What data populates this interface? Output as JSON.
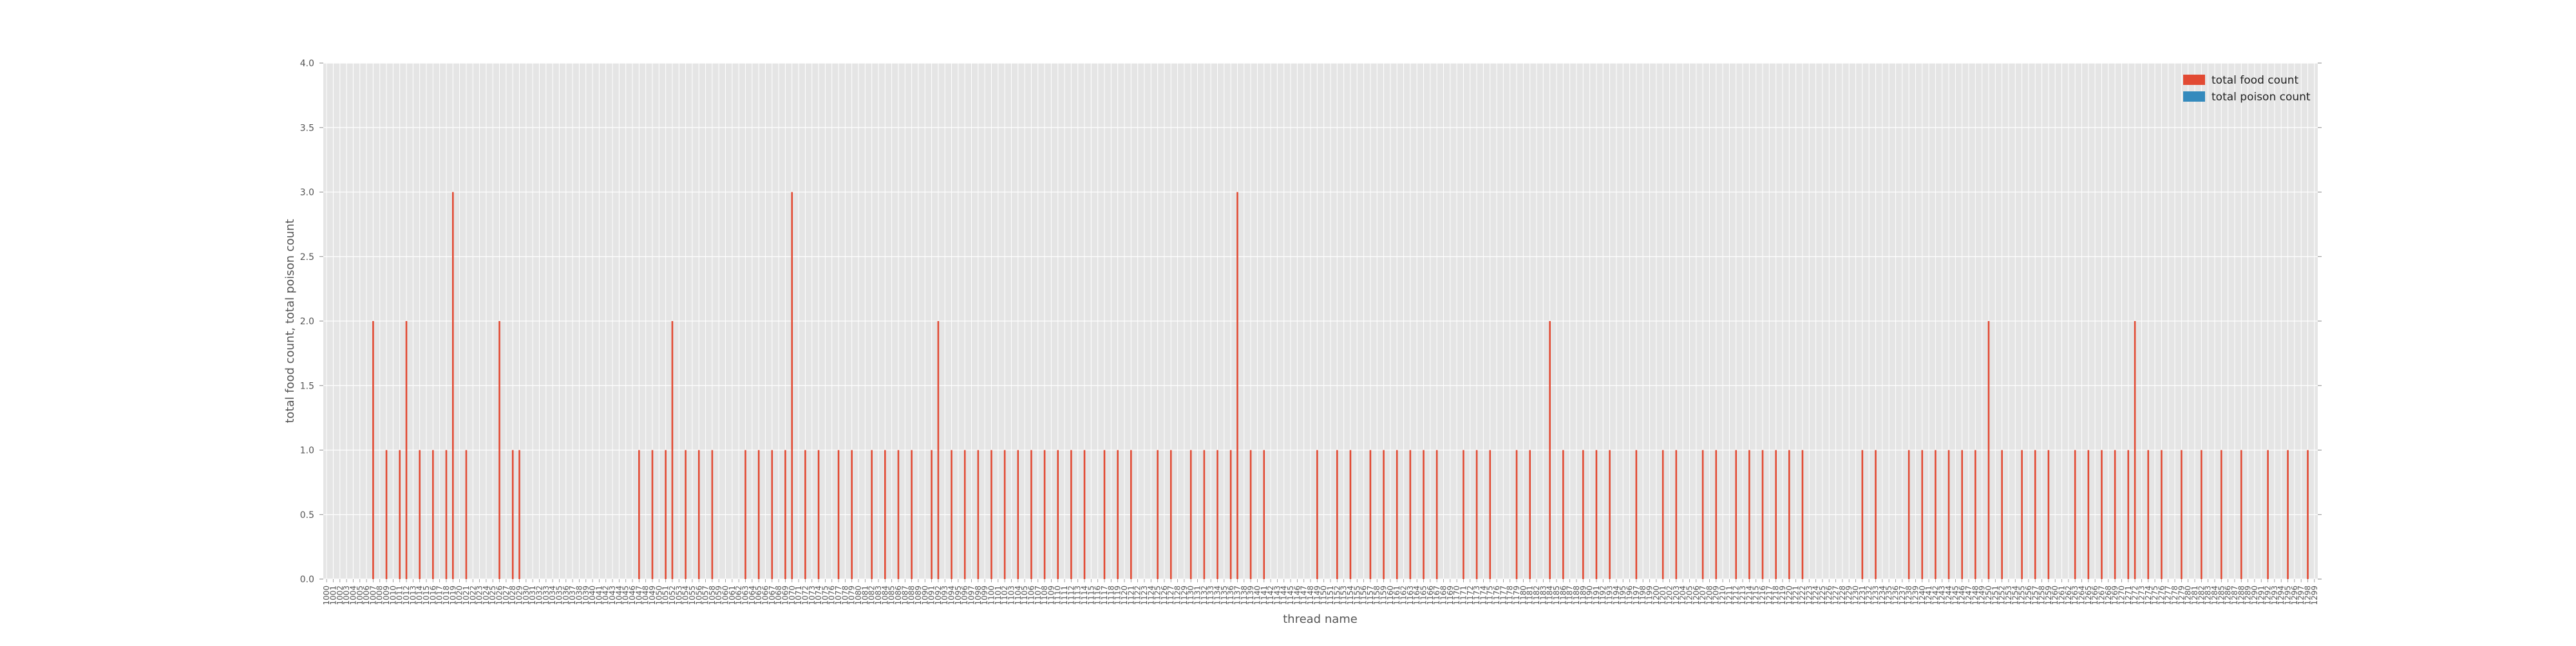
{
  "chart_data": {
    "type": "bar",
    "xlabel": "thread name",
    "ylabel": "total food count, total poison count",
    "ylim": [
      0,
      4.0
    ],
    "yticks": [
      "0.0",
      "0.5",
      "1.0",
      "1.5",
      "2.0",
      "2.5",
      "3.0",
      "3.5",
      "4.0"
    ],
    "grid": true,
    "legend_position": "top-right",
    "background_color": "#e5e5e5",
    "x_start": 1000,
    "x_end": 1299,
    "series": [
      {
        "name": "total food count",
        "color": "#e24a33",
        "values": [
          0,
          0,
          0,
          0,
          0,
          0,
          0,
          2,
          0,
          1,
          0,
          1,
          2,
          0,
          1,
          0,
          1,
          0,
          1,
          3,
          0,
          1,
          0,
          0,
          0,
          0,
          2,
          0,
          1,
          1,
          0,
          0,
          0,
          0,
          0,
          0,
          0,
          0,
          0,
          0,
          0,
          0,
          0,
          0,
          0,
          0,
          0,
          1,
          0,
          1,
          0,
          1,
          2,
          0,
          1,
          0,
          1,
          0,
          1,
          0,
          0,
          0,
          0,
          1,
          0,
          1,
          0,
          1,
          0,
          1,
          3,
          0,
          1,
          0,
          1,
          0,
          0,
          1,
          0,
          1,
          0,
          0,
          1,
          0,
          1,
          0,
          1,
          0,
          1,
          0,
          0,
          1,
          2,
          0,
          1,
          0,
          1,
          0,
          1,
          0,
          1,
          0,
          1,
          0,
          1,
          0,
          1,
          0,
          1,
          0,
          1,
          0,
          1,
          0,
          1,
          0,
          0,
          1,
          0,
          1,
          0,
          1,
          0,
          0,
          0,
          1,
          0,
          1,
          0,
          0,
          1,
          0,
          1,
          0,
          1,
          0,
          1,
          3,
          0,
          1,
          0,
          1,
          0,
          0,
          0,
          0,
          0,
          0,
          0,
          1,
          0,
          0,
          1,
          0,
          1,
          0,
          0,
          1,
          0,
          1,
          0,
          1,
          0,
          1,
          0,
          1,
          0,
          1,
          0,
          0,
          0,
          1,
          0,
          1,
          0,
          1,
          0,
          0,
          0,
          1,
          0,
          1,
          0,
          0,
          2,
          0,
          1,
          0,
          0,
          1,
          0,
          1,
          0,
          1,
          0,
          0,
          0,
          1,
          0,
          0,
          0,
          1,
          0,
          1,
          0,
          0,
          0,
          1,
          0,
          1,
          0,
          0,
          1,
          0,
          1,
          0,
          1,
          0,
          1,
          0,
          1,
          0,
          1,
          0,
          0,
          0,
          0,
          0,
          0,
          0,
          0,
          1,
          0,
          1,
          0,
          0,
          0,
          0,
          1,
          0,
          1,
          0,
          1,
          0,
          1,
          0,
          1,
          0,
          1,
          0,
          2,
          0,
          1,
          0,
          0,
          1,
          0,
          1,
          0,
          1,
          0,
          0,
          0,
          1,
          0,
          1,
          0,
          1,
          0,
          1,
          0,
          1,
          2,
          0,
          1,
          0,
          1,
          0,
          0,
          1,
          0,
          0,
          1,
          0,
          0,
          1,
          0,
          0,
          1,
          0,
          0,
          0,
          1,
          0,
          0,
          1,
          0,
          0,
          1,
          0
        ]
      },
      {
        "name": "total poison count",
        "color": "#348abd",
        "values": []
      }
    ],
    "xtick_labels": [
      "1000",
      "1001",
      "1002",
      "1003",
      "1004",
      "1005",
      "1006",
      "1007",
      "1008",
      "1009",
      "1010",
      "1011",
      "1012",
      "1013",
      "1014",
      "1015",
      "1016",
      "1017",
      "1018",
      "1019",
      "1020",
      "1021",
      "1022",
      "1023",
      "1024",
      "1025",
      "1026",
      "1027",
      "1028",
      "1029",
      "1030",
      "1031",
      "1032",
      "1033",
      "1034",
      "1035",
      "1036",
      "1037",
      "1038",
      "1039",
      "1040",
      "1041",
      "1042",
      "1043",
      "1044",
      "1045",
      "1046",
      "1047",
      "1048",
      "1049",
      "1050",
      "1051",
      "1052",
      "1053",
      "1054",
      "1055",
      "1056",
      "1057",
      "1058",
      "1059",
      "1060",
      "1061",
      "1062",
      "1063",
      "1064",
      "1065",
      "1066",
      "1067",
      "1068",
      "1069",
      "1070",
      "1071",
      "1072",
      "1073",
      "1074",
      "1075",
      "1076",
      "1077",
      "1078",
      "1079",
      "1080",
      "1081",
      "1082",
      "1083",
      "1084",
      "1085",
      "1086",
      "1087",
      "1088",
      "1089",
      "1090",
      "1091",
      "1092",
      "1093",
      "1094",
      "1095",
      "1096",
      "1097",
      "1098",
      "1099",
      "1100",
      "1101",
      "1102",
      "1103",
      "1104",
      "1105",
      "1106",
      "1107",
      "1108",
      "1109",
      "1110",
      "1111",
      "1112",
      "1113",
      "1114",
      "1115",
      "1116",
      "1117",
      "1118",
      "1119",
      "1120",
      "1121",
      "1122",
      "1123",
      "1124",
      "1125",
      "1126",
      "1127",
      "1128",
      "1129",
      "1130",
      "1131",
      "1132",
      "1133",
      "1134",
      "1135",
      "1136",
      "1137",
      "1138",
      "1139",
      "1140",
      "1141",
      "1142",
      "1143",
      "1144",
      "1145",
      "1146",
      "1147",
      "1148",
      "1149",
      "1150",
      "1151",
      "1152",
      "1153",
      "1154",
      "1155",
      "1156",
      "1157",
      "1158",
      "1159",
      "1160",
      "1161",
      "1162",
      "1163",
      "1164",
      "1165",
      "1166",
      "1167",
      "1168",
      "1169",
      "1170",
      "1171",
      "1172",
      "1173",
      "1174",
      "1175",
      "1176",
      "1177",
      "1178",
      "1179",
      "1180",
      "1181",
      "1182",
      "1183",
      "1184",
      "1185",
      "1186",
      "1187",
      "1188",
      "1189",
      "1190",
      "1191",
      "1192",
      "1193",
      "1194",
      "1195",
      "1196",
      "1197",
      "1198",
      "1199",
      "1200",
      "1201",
      "1202",
      "1203",
      "1204",
      "1205",
      "1206",
      "1207",
      "1208",
      "1209",
      "1210",
      "1211",
      "1212",
      "1213",
      "1214",
      "1215",
      "1216",
      "1217",
      "1218",
      "1219",
      "1220",
      "1221",
      "1222",
      "1223",
      "1224",
      "1225",
      "1226",
      "1227",
      "1228",
      "1229",
      "1230",
      "1231",
      "1232",
      "1233",
      "1234",
      "1235",
      "1236",
      "1237",
      "1238",
      "1239",
      "1240",
      "1241",
      "1242",
      "1243",
      "1244",
      "1245",
      "1246",
      "1247",
      "1248",
      "1249",
      "1250",
      "1251",
      "1252",
      "1253",
      "1254",
      "1255",
      "1256",
      "1257",
      "1258",
      "1259",
      "1260",
      "1261",
      "1262",
      "1263",
      "1264",
      "1265",
      "1266",
      "1267",
      "1268",
      "1269",
      "1270",
      "1271",
      "1272",
      "1273",
      "1274",
      "1275",
      "1276",
      "1277",
      "1278",
      "1279",
      "1280",
      "1281",
      "1282",
      "1283",
      "1284",
      "1285",
      "1286",
      "1287",
      "1288",
      "1289",
      "1290",
      "1291",
      "1292",
      "1293",
      "1294",
      "1295",
      "1296",
      "1297",
      "1298",
      "1299"
    ]
  }
}
